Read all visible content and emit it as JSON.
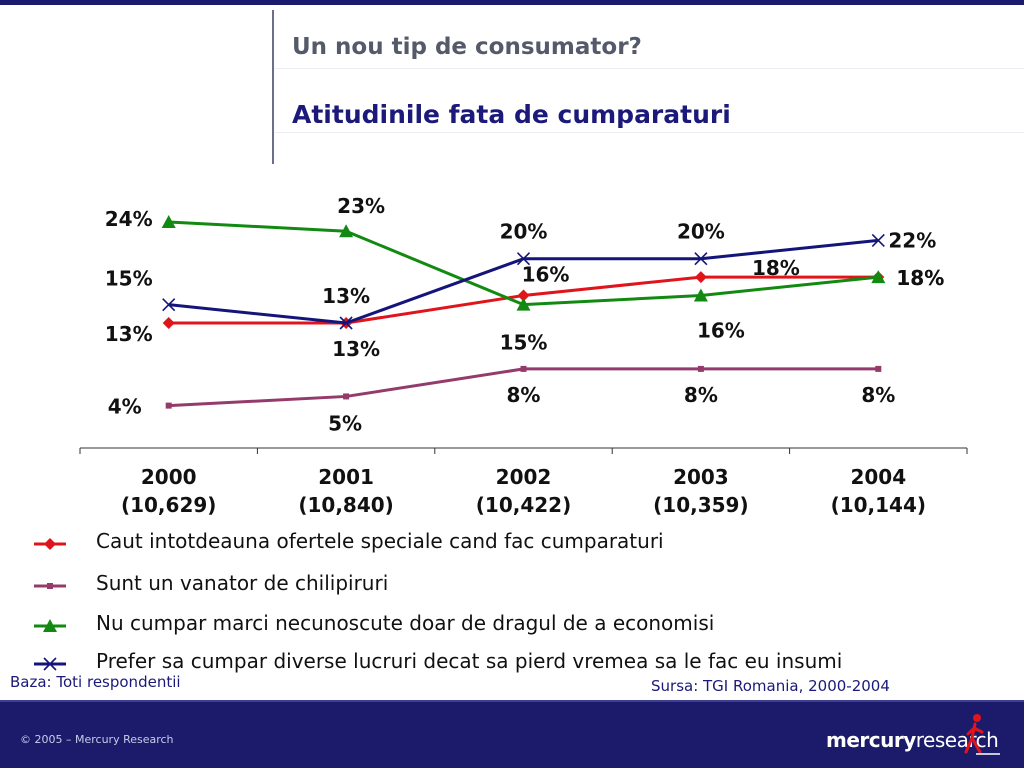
{
  "header": {
    "title": "Un nou tip de consumator?",
    "subtitle": "Atitudinile fata de cumparaturi"
  },
  "chart_data": {
    "type": "line",
    "title": "Atitudinile fata de cumparaturi",
    "categories": [
      "2000",
      "2001",
      "2002",
      "2003",
      "2004"
    ],
    "category_sublabels": [
      "(10,629)",
      "(10,840)",
      "(10,422)",
      "(10,359)",
      "(10,144)"
    ],
    "ylim": [
      0,
      30
    ],
    "grid": false,
    "series": [
      {
        "name": "Caut intotdeauna ofertele speciale cand fac cumparaturi",
        "color": "#e0141b",
        "marker": "diamond",
        "values": [
          13,
          13,
          16,
          18,
          18
        ],
        "labels": [
          "13%",
          "13%",
          "16%",
          "18%",
          "18%"
        ]
      },
      {
        "name": "Sunt un vanator de chilipiruri",
        "color": "#943b6b",
        "marker": "square",
        "values": [
          4,
          5,
          8,
          8,
          8
        ],
        "labels": [
          "4%",
          "5%",
          "8%",
          "8%",
          "8%"
        ]
      },
      {
        "name": "Nu cumpar marci necunoscute doar de dragul de a economisi",
        "color": "#128a12",
        "marker": "triangle",
        "values": [
          24,
          23,
          15,
          16,
          18
        ],
        "labels": [
          "24%",
          "23%",
          "15%",
          "16%",
          "18%"
        ]
      },
      {
        "name": "Prefer sa cumpar diverse lucruri decat sa pierd vremea sa le fac eu insumi",
        "color": "#14157a",
        "marker": "x",
        "values": [
          15,
          13,
          20,
          20,
          22
        ],
        "labels": [
          "15%",
          "13%",
          "20%",
          "20%",
          "22%"
        ]
      }
    ]
  },
  "notes": {
    "base": "Baza: Toti respondentii",
    "source": "Sursa: TGI Romania, 2000-2004"
  },
  "footer": {
    "copyright": "© 2005 – Mercury Research",
    "brand_bold": "mercury",
    "brand_regular": "research"
  }
}
